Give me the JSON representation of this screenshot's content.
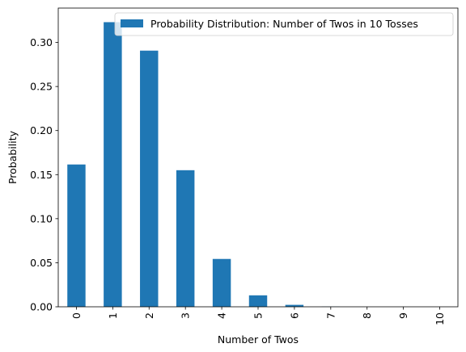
{
  "chart_data": {
    "type": "bar",
    "categories": [
      "0",
      "1",
      "2",
      "3",
      "4",
      "5",
      "6",
      "7",
      "8",
      "9",
      "10"
    ],
    "series": [
      {
        "name": "Probability Distribution: Number of Twos in 10 Tosses",
        "values": [
          0.1615,
          0.323,
          0.2907,
          0.155,
          0.0543,
          0.013,
          0.0022,
          0.0002,
          0.0,
          0.0,
          0.0
        ],
        "color": "#1f77b4"
      }
    ],
    "xlabel": "Number of Twos",
    "ylabel": "Probability",
    "ylim": [
      0,
      0.339
    ],
    "yticks": [
      "0.00",
      "0.05",
      "0.10",
      "0.15",
      "0.20",
      "0.25",
      "0.30"
    ],
    "ytick_values": [
      0,
      0.05,
      0.1,
      0.15,
      0.2,
      0.25,
      0.3
    ],
    "grid": false,
    "legend_position": "top-right"
  }
}
